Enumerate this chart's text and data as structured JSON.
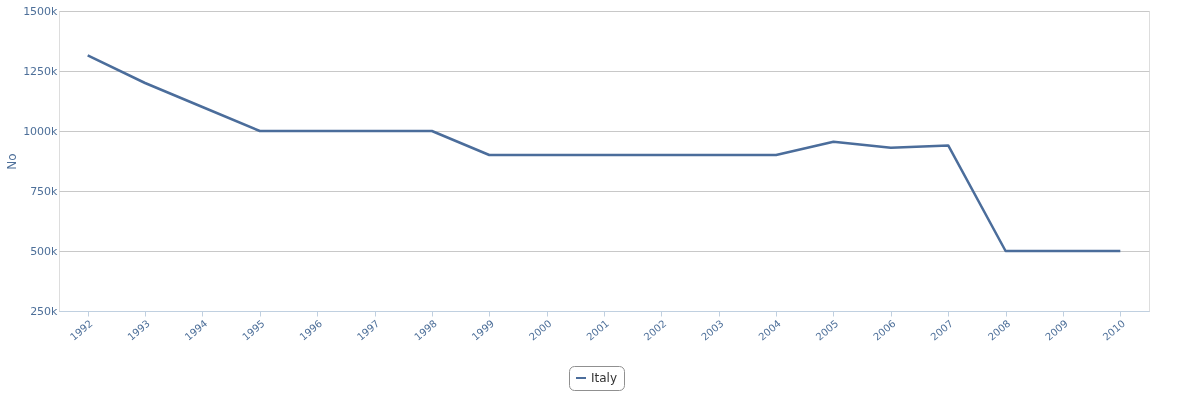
{
  "chart_data": {
    "type": "line",
    "ylabel": "No",
    "categories": [
      "1992",
      "1993",
      "1994",
      "1995",
      "1996",
      "1997",
      "1998",
      "1999",
      "2000",
      "2001",
      "2002",
      "2003",
      "2004",
      "2005",
      "2006",
      "2007",
      "2008",
      "2009",
      "2010"
    ],
    "series": [
      {
        "name": "Italy",
        "color": "#4b6d9b",
        "values": [
          1315000,
          1200000,
          1100000,
          1000000,
          1000000,
          1000000,
          1000000,
          900000,
          900000,
          900000,
          900000,
          900000,
          900000,
          955000,
          930000,
          940000,
          500000,
          500000,
          500000
        ]
      }
    ],
    "ylim": [
      250000,
      1500000
    ],
    "yticks": [
      {
        "value": 250000,
        "label": "250k"
      },
      {
        "value": 500000,
        "label": "500k"
      },
      {
        "value": 750000,
        "label": "750k"
      },
      {
        "value": 1000000,
        "label": "1000k"
      },
      {
        "value": 1250000,
        "label": "1250k"
      },
      {
        "value": 1500000,
        "label": "1500k"
      }
    ],
    "grid": "y",
    "legend": "bottom",
    "marker": "none",
    "line_style": "solid"
  }
}
